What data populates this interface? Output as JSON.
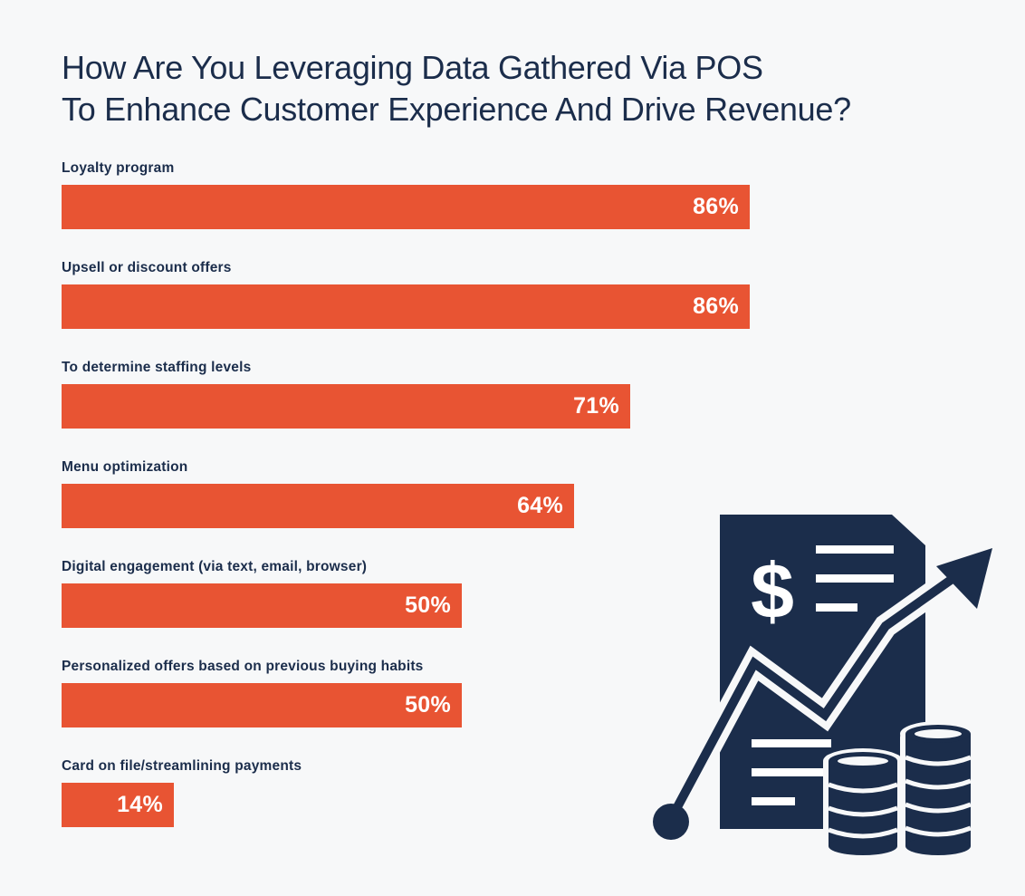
{
  "chart_data": {
    "type": "bar",
    "orientation": "horizontal",
    "title_lines": [
      "How Are You Leveraging Data Gathered Via POS",
      "To Enhance Customer Experience And Drive Revenue?"
    ],
    "categories": [
      "Loyalty program",
      "Upsell or discount offers",
      "To determine staffing levels",
      "Menu optimization",
      "Digital engagement (via text, email, browser)",
      "Personalized offers based on previous buying habits",
      "Card on file/streamlining payments"
    ],
    "values": [
      86,
      86,
      71,
      64,
      50,
      50,
      14
    ],
    "value_labels": [
      "86%",
      "86%",
      "71%",
      "64%",
      "50%",
      "50%",
      "14%"
    ],
    "unit": "%",
    "grid": false,
    "bar_color": "#e85433",
    "text_color": "#1b2d4b"
  },
  "illustration": {
    "icon_name": "revenue-growth-illustration",
    "dollar_symbol": "$",
    "color": "#1b2d4b"
  }
}
